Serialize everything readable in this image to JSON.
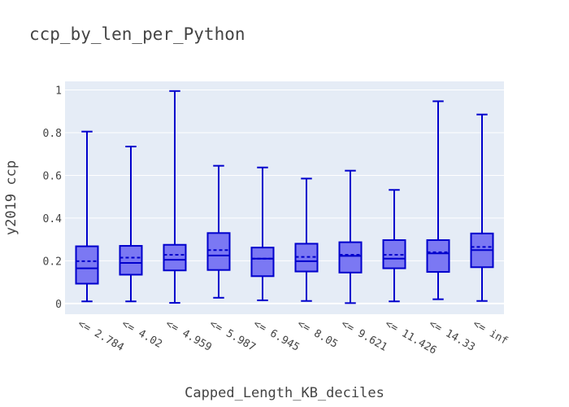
{
  "chart_data": {
    "type": "box",
    "title": "ccp_by_len_per_Python",
    "xlabel": "Capped_Length_KB_deciles",
    "ylabel": "y2019 ccp",
    "ylim": [
      -0.05,
      1.04
    ],
    "yticks": [
      0,
      0.2,
      0.4,
      0.6,
      0.8,
      1
    ],
    "ytick_labels": [
      "0",
      "0.2",
      "0.4",
      "0.6",
      "0.8",
      "1"
    ],
    "grid": true,
    "legend": "none",
    "colors": {
      "box_fill": "#7b78f3",
      "line": "#0000cc",
      "background": "#e5ecf6",
      "grid": "#ffffff"
    },
    "categories": [
      "<= 2.784",
      "<= 4.02",
      "<= 4.959",
      "<= 5.987",
      "<= 6.945",
      "<= 8.05",
      "<= 9.621",
      "<= 11.426",
      "<= 14.33",
      "<= inf"
    ],
    "boxes": [
      {
        "min": 0.01,
        "q1": 0.093,
        "median": 0.165,
        "mean": 0.198,
        "q3": 0.268,
        "max": 0.805
      },
      {
        "min": 0.01,
        "q1": 0.135,
        "median": 0.19,
        "mean": 0.215,
        "q3": 0.27,
        "max": 0.735
      },
      {
        "min": 0.003,
        "q1": 0.155,
        "median": 0.205,
        "mean": 0.228,
        "q3": 0.275,
        "max": 0.995
      },
      {
        "min": 0.027,
        "q1": 0.157,
        "median": 0.225,
        "mean": 0.25,
        "q3": 0.33,
        "max": 0.645
      },
      {
        "min": 0.015,
        "q1": 0.128,
        "median": 0.21,
        "mean": 0.21,
        "q3": 0.262,
        "max": 0.637
      },
      {
        "min": 0.012,
        "q1": 0.15,
        "median": 0.198,
        "mean": 0.218,
        "q3": 0.28,
        "max": 0.585
      },
      {
        "min": 0.002,
        "q1": 0.145,
        "median": 0.223,
        "mean": 0.228,
        "q3": 0.287,
        "max": 0.622
      },
      {
        "min": 0.01,
        "q1": 0.165,
        "median": 0.21,
        "mean": 0.228,
        "q3": 0.297,
        "max": 0.532
      },
      {
        "min": 0.02,
        "q1": 0.148,
        "median": 0.235,
        "mean": 0.24,
        "q3": 0.297,
        "max": 0.947
      },
      {
        "min": 0.012,
        "q1": 0.17,
        "median": 0.25,
        "mean": 0.265,
        "q3": 0.328,
        "max": 0.885
      }
    ]
  }
}
